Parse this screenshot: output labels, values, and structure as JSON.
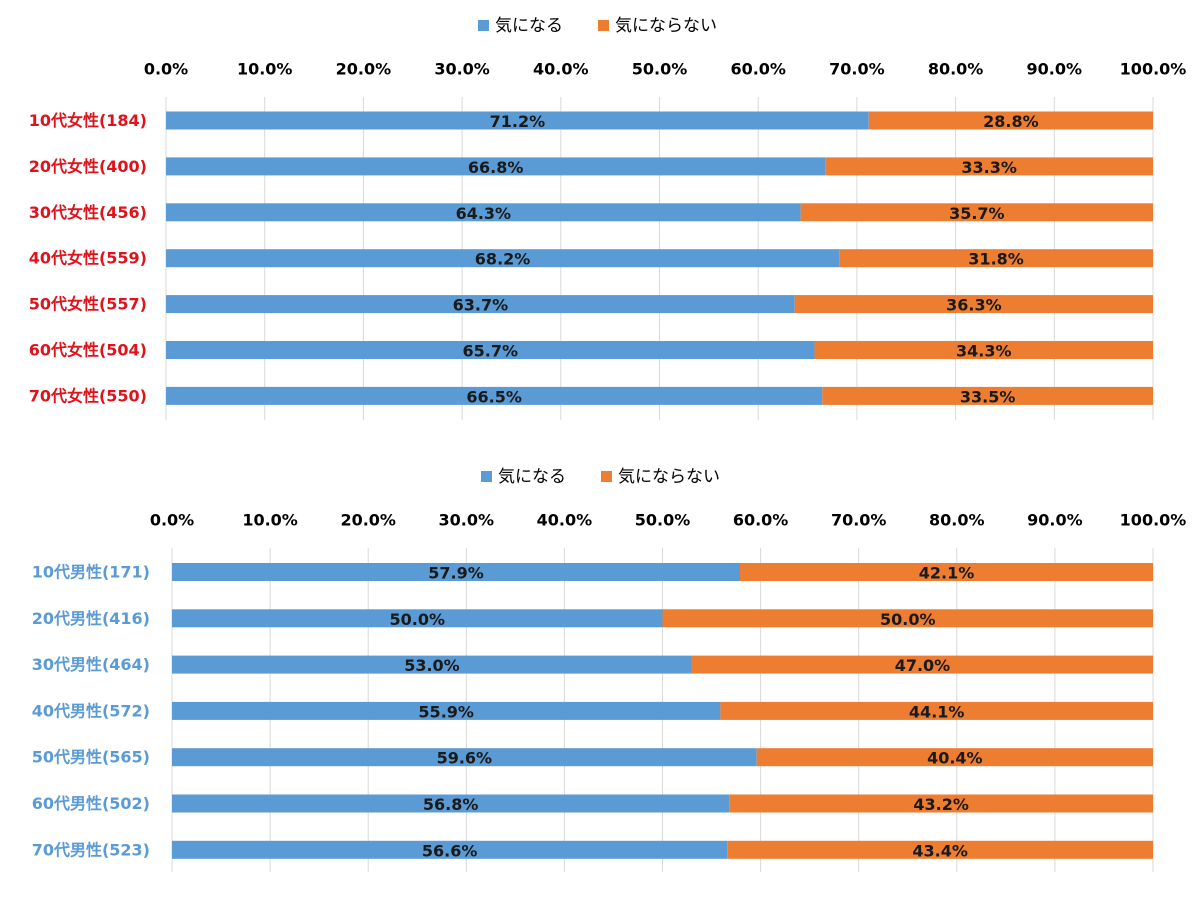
{
  "colors": {
    "blue": "#5b9bd5",
    "orange": "#ed7d31",
    "grid": "#d9d9d9",
    "tick_text": "#000000",
    "women_label": "#e0121b",
    "men_label": "#5b9bd5"
  },
  "chart_data": [
    {
      "type": "bar",
      "orientation": "horizontal",
      "stacked": true,
      "title": "",
      "xlabel": "",
      "ylabel": "",
      "xlim": [
        0,
        100
      ],
      "grid": true,
      "legend_position": "top-center",
      "x_ticks": [
        "0.0%",
        "10.0%",
        "20.0%",
        "30.0%",
        "40.0%",
        "50.0%",
        "60.0%",
        "70.0%",
        "80.0%",
        "90.0%",
        "100.0%"
      ],
      "categories": [
        "10代女性(184)",
        "20代女性(400)",
        "30代女性(456)",
        "40代女性(559)",
        "50代女性(557)",
        "60代女性(504)",
        "70代女性(550)"
      ],
      "series": [
        {
          "name": "気になる",
          "values": [
            71.2,
            66.8,
            64.3,
            68.2,
            63.7,
            65.7,
            66.5
          ],
          "labels": [
            "71.2%",
            "66.8%",
            "64.3%",
            "68.2%",
            "63.7%",
            "65.7%",
            "66.5%"
          ]
        },
        {
          "name": "気にならない",
          "values": [
            28.8,
            33.3,
            35.7,
            31.8,
            36.3,
            34.3,
            33.5
          ],
          "labels": [
            "28.8%",
            "33.3%",
            "35.7%",
            "31.8%",
            "36.3%",
            "34.3%",
            "33.5%"
          ]
        }
      ]
    },
    {
      "type": "bar",
      "orientation": "horizontal",
      "stacked": true,
      "title": "",
      "xlabel": "",
      "ylabel": "",
      "xlim": [
        0,
        100
      ],
      "grid": true,
      "legend_position": "top-center",
      "x_ticks": [
        "0.0%",
        "10.0%",
        "20.0%",
        "30.0%",
        "40.0%",
        "50.0%",
        "60.0%",
        "70.0%",
        "80.0%",
        "90.0%",
        "100.0%"
      ],
      "categories": [
        "10代男性(171)",
        "20代男性(416)",
        "30代男性(464)",
        "40代男性(572)",
        "50代男性(565)",
        "60代男性(502)",
        "70代男性(523)"
      ],
      "series": [
        {
          "name": "気になる",
          "values": [
            57.9,
            50.0,
            53.0,
            55.9,
            59.6,
            56.8,
            56.6
          ],
          "labels": [
            "57.9%",
            "50.0%",
            "53.0%",
            "55.9%",
            "59.6%",
            "56.8%",
            "56.6%"
          ]
        },
        {
          "name": "気にならない",
          "values": [
            42.1,
            50.0,
            47.0,
            44.1,
            40.4,
            43.2,
            43.4
          ],
          "labels": [
            "42.1%",
            "50.0%",
            "47.0%",
            "44.1%",
            "40.4%",
            "43.2%",
            "43.4%"
          ]
        }
      ]
    }
  ]
}
